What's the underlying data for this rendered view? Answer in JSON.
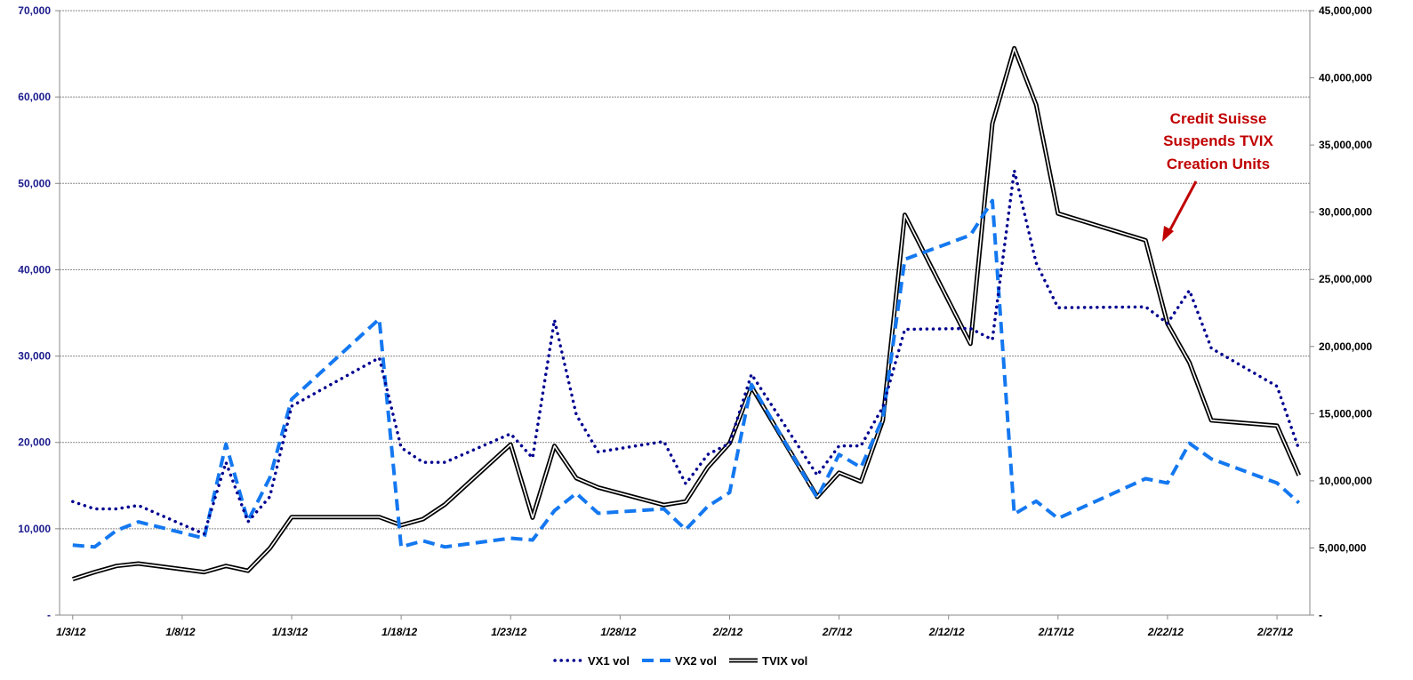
{
  "chart_data": {
    "type": "line",
    "title": "",
    "xlabel": "",
    "ylabel": "",
    "y2label": "",
    "x": [
      "1/3/12",
      "1/4/12",
      "1/5/12",
      "1/6/12",
      "1/9/12",
      "1/10/12",
      "1/11/12",
      "1/12/12",
      "1/13/12",
      "1/17/12",
      "1/18/12",
      "1/19/12",
      "1/20/12",
      "1/23/12",
      "1/24/12",
      "1/25/12",
      "1/26/12",
      "1/27/12",
      "1/30/12",
      "1/31/12",
      "2/1/12",
      "2/2/12",
      "2/3/12",
      "2/6/12",
      "2/7/12",
      "2/8/12",
      "2/9/12",
      "2/10/12",
      "2/13/12",
      "2/14/12",
      "2/15/12",
      "2/16/12",
      "2/17/12",
      "2/21/12",
      "2/22/12",
      "2/23/12",
      "2/24/12",
      "2/27/12",
      "2/28/12"
    ],
    "x_tick_labels": [
      "1/3/12",
      "1/8/12",
      "1/13/12",
      "1/18/12",
      "1/23/12",
      "1/28/12",
      "2/2/12",
      "2/7/12",
      "2/12/12",
      "2/17/12",
      "2/22/12",
      "2/27/12"
    ],
    "x_start": "1/3/12",
    "xlim_days": [
      -0.6,
      56.5
    ],
    "ylim": [
      0,
      70000
    ],
    "y2lim": [
      0,
      45000000
    ],
    "y_tick_labels": [
      "-",
      "10,000",
      "20,000",
      "30,000",
      "40,000",
      "50,000",
      "60,000",
      "70,000"
    ],
    "y2_tick_labels": [
      "-",
      "5,000,000",
      "10,000,000",
      "15,000,000",
      "20,000,000",
      "25,000,000",
      "30,000,000",
      "35,000,000",
      "40,000,000",
      "45,000,000"
    ],
    "grid": true,
    "legend_position": "bottom",
    "series": [
      {
        "name": "VX1 vol",
        "axis": "left",
        "style": "dotted",
        "color": "#000090",
        "values": [
          13150,
          12300,
          12300,
          12700,
          9400,
          17700,
          10800,
          13700,
          24200,
          29800,
          19400,
          17700,
          17700,
          21000,
          18200,
          34200,
          23200,
          18900,
          20100,
          15200,
          18600,
          19900,
          27900,
          16200,
          19600,
          19600,
          24100,
          33100,
          33200,
          31900,
          51500,
          40800,
          35600,
          35700,
          33800,
          37600,
          30900,
          26500,
          19200
        ]
      },
      {
        "name": "VX2 vol",
        "axis": "left",
        "style": "dashed",
        "color": "#1478F0",
        "values": [
          8100,
          7900,
          9800,
          10800,
          8900,
          19800,
          10900,
          15900,
          25000,
          34300,
          7900,
          8600,
          7900,
          8900,
          8700,
          12100,
          14100,
          11800,
          12300,
          9900,
          12600,
          14200,
          26700,
          13600,
          18600,
          17100,
          22800,
          41200,
          44000,
          48000,
          11700,
          13200,
          11200,
          15800,
          15300,
          19900,
          18100,
          15300,
          13000
        ]
      },
      {
        "name": "TVIX vol",
        "axis": "right",
        "style": "double",
        "color": "#000000",
        "values": [
          2680000,
          3200000,
          3660000,
          3840000,
          3200000,
          3660000,
          3300000,
          4970000,
          7300000,
          7300000,
          6700000,
          7150000,
          8240000,
          12700000,
          7250000,
          12600000,
          10200000,
          9500000,
          8200000,
          8460000,
          11000000,
          12800000,
          17000000,
          8800000,
          10600000,
          9940000,
          14500000,
          29800000,
          20200000,
          36600000,
          42200000,
          38000000,
          29900000,
          27900000,
          21700000,
          18800000,
          14500000,
          14100000,
          10400000
        ]
      }
    ],
    "annotations": [
      {
        "lines": [
          "Credit Suisse",
          "Suspends TVIX",
          "Creation Units"
        ],
        "color": "#C00000",
        "points_to": "2/21/12"
      }
    ]
  }
}
